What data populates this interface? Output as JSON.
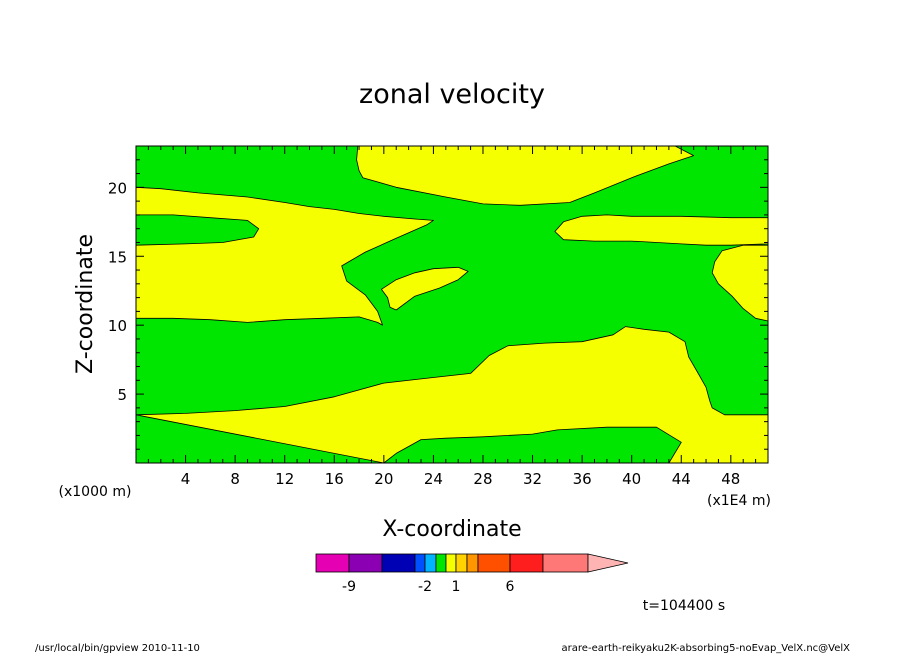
{
  "chart_data": {
    "type": "contour",
    "title": "zonal velocity",
    "xlabel": "X-coordinate",
    "ylabel": "Z-coordinate",
    "x_unit": "(x1E4 m)",
    "y_unit": "(x1000 m)",
    "xlim": [
      0,
      51
    ],
    "ylim": [
      0,
      23
    ],
    "x_ticks": [
      4,
      8,
      12,
      16,
      20,
      24,
      28,
      32,
      36,
      40,
      44,
      48
    ],
    "y_ticks": [
      5,
      10,
      15,
      20
    ],
    "field_colors": {
      "low": "#00e600",
      "high": "#f5ff00"
    },
    "regions": [
      {
        "level": "high",
        "name": "upper-right-yellow",
        "points": [
          [
            17.9,
            23
          ],
          [
            17.8,
            22
          ],
          [
            18.0,
            21.2
          ],
          [
            18.3,
            20.7
          ],
          [
            21,
            20
          ],
          [
            25,
            19.3
          ],
          [
            28,
            18.8
          ],
          [
            31,
            18.7
          ],
          [
            35,
            18.9
          ],
          [
            37,
            19.6
          ],
          [
            40,
            20.7
          ],
          [
            43,
            21.7
          ],
          [
            45,
            22.3
          ],
          [
            43.5,
            23
          ]
        ]
      },
      {
        "level": "high",
        "name": "upper-left-yellow",
        "points": [
          [
            0,
            20
          ],
          [
            2,
            19.9
          ],
          [
            5,
            19.6
          ],
          [
            9,
            19.3
          ],
          [
            12,
            18.9
          ],
          [
            14,
            18.6
          ],
          [
            16,
            18.4
          ],
          [
            18,
            18.1
          ],
          [
            20,
            17.9
          ],
          [
            22.5,
            17.7
          ],
          [
            24,
            17.6
          ],
          [
            23.5,
            17.3
          ],
          [
            21,
            16.3
          ],
          [
            18.5,
            15.3
          ],
          [
            16.6,
            14.3
          ],
          [
            17,
            13.2
          ],
          [
            18.5,
            12.2
          ],
          [
            19.5,
            11.0
          ],
          [
            19.9,
            10.0
          ],
          [
            19.5,
            10.2
          ],
          [
            18,
            10.6
          ],
          [
            15,
            10.5
          ],
          [
            12,
            10.4
          ],
          [
            9,
            10.2
          ],
          [
            6,
            10.4
          ],
          [
            3,
            10.5
          ],
          [
            0,
            10.5
          ]
        ]
      },
      {
        "level": "low",
        "name": "left-green-lens",
        "points": [
          [
            0,
            18
          ],
          [
            3,
            18
          ],
          [
            6,
            17.8
          ],
          [
            9,
            17.6
          ],
          [
            9.9,
            17.0
          ],
          [
            9.5,
            16.4
          ],
          [
            7,
            16.0
          ],
          [
            4,
            15.9
          ],
          [
            0,
            15.8
          ]
        ]
      },
      {
        "level": "high",
        "name": "center-yellow-blob",
        "points": [
          [
            19.8,
            12.6
          ],
          [
            21,
            13.3
          ],
          [
            22.5,
            13.8
          ],
          [
            24,
            14.1
          ],
          [
            26,
            14.2
          ],
          [
            26.8,
            13.9
          ],
          [
            26,
            13.3
          ],
          [
            24.5,
            12.7
          ],
          [
            22.5,
            12.1
          ],
          [
            21,
            11.1
          ],
          [
            20.5,
            11.3
          ],
          [
            20.3,
            12.0
          ]
        ]
      },
      {
        "level": "high",
        "name": "right-yellow-lens",
        "points": [
          [
            33.8,
            16.8
          ],
          [
            34.5,
            17.5
          ],
          [
            36,
            17.9
          ],
          [
            38,
            18.0
          ],
          [
            40,
            17.9
          ],
          [
            44,
            17.9
          ],
          [
            48,
            17.8
          ],
          [
            51,
            17.8
          ],
          [
            51,
            15.9
          ],
          [
            48,
            15.8
          ],
          [
            46,
            15.8
          ],
          [
            44,
            15.9
          ],
          [
            40,
            16.1
          ],
          [
            37,
            16.1
          ],
          [
            34.5,
            16.2
          ]
        ]
      },
      {
        "level": "high",
        "name": "far-right-yellow",
        "points": [
          [
            51,
            15.8
          ],
          [
            49,
            15.8
          ],
          [
            47.3,
            15.4
          ],
          [
            46.7,
            14.6
          ],
          [
            46.5,
            13.8
          ],
          [
            47,
            13.0
          ],
          [
            48.1,
            12.1
          ],
          [
            49,
            11.2
          ],
          [
            50,
            10.5
          ],
          [
            51,
            10.3
          ]
        ]
      },
      {
        "level": "high",
        "name": "lower-yellow-band",
        "points": [
          [
            0,
            3.5
          ],
          [
            4,
            3.6
          ],
          [
            8,
            3.8
          ],
          [
            12,
            4.1
          ],
          [
            16,
            4.8
          ],
          [
            20,
            5.8
          ],
          [
            24,
            6.2
          ],
          [
            27,
            6.5
          ],
          [
            28.5,
            7.8
          ],
          [
            30,
            8.5
          ],
          [
            33,
            8.7
          ],
          [
            36,
            8.8
          ],
          [
            38.5,
            9.3
          ],
          [
            39.5,
            9.9
          ],
          [
            41,
            9.7
          ],
          [
            43,
            9.5
          ],
          [
            44.3,
            8.8
          ],
          [
            44.6,
            7.7
          ],
          [
            45.3,
            6.6
          ],
          [
            46,
            5.5
          ],
          [
            46.3,
            4.5
          ],
          [
            46.5,
            4.0
          ],
          [
            47.5,
            3.5
          ],
          [
            51,
            3.5
          ],
          [
            51,
            0
          ],
          [
            43,
            0
          ],
          [
            44,
            1.5
          ],
          [
            42,
            2.6
          ],
          [
            40,
            2.6
          ],
          [
            38,
            2.6
          ],
          [
            34,
            2.4
          ],
          [
            32,
            2.1
          ],
          [
            28,
            1.9
          ],
          [
            25,
            1.8
          ],
          [
            23,
            1.7
          ],
          [
            21,
            0.7
          ],
          [
            20,
            0
          ]
        ]
      }
    ],
    "colorbar": {
      "colors": [
        "#e600b4",
        "#8c00b4",
        "#0000b4",
        "#0050ff",
        "#00b4ff",
        "#00e600",
        "#f5ff00",
        "#ffd200",
        "#ff9600",
        "#ff5000",
        "#ff1e1e",
        "#ff7878",
        "#ffb4b4"
      ],
      "tick_labels": [
        "-9",
        "-2",
        "1",
        "6"
      ]
    },
    "time_label": "t=104400 s"
  },
  "footer": {
    "left": "/usr/local/bin/gpview  2010-11-10",
    "right": "arare-earth-reikyaku2K-absorbing5-noEvap_VelX.nc@VelX"
  }
}
